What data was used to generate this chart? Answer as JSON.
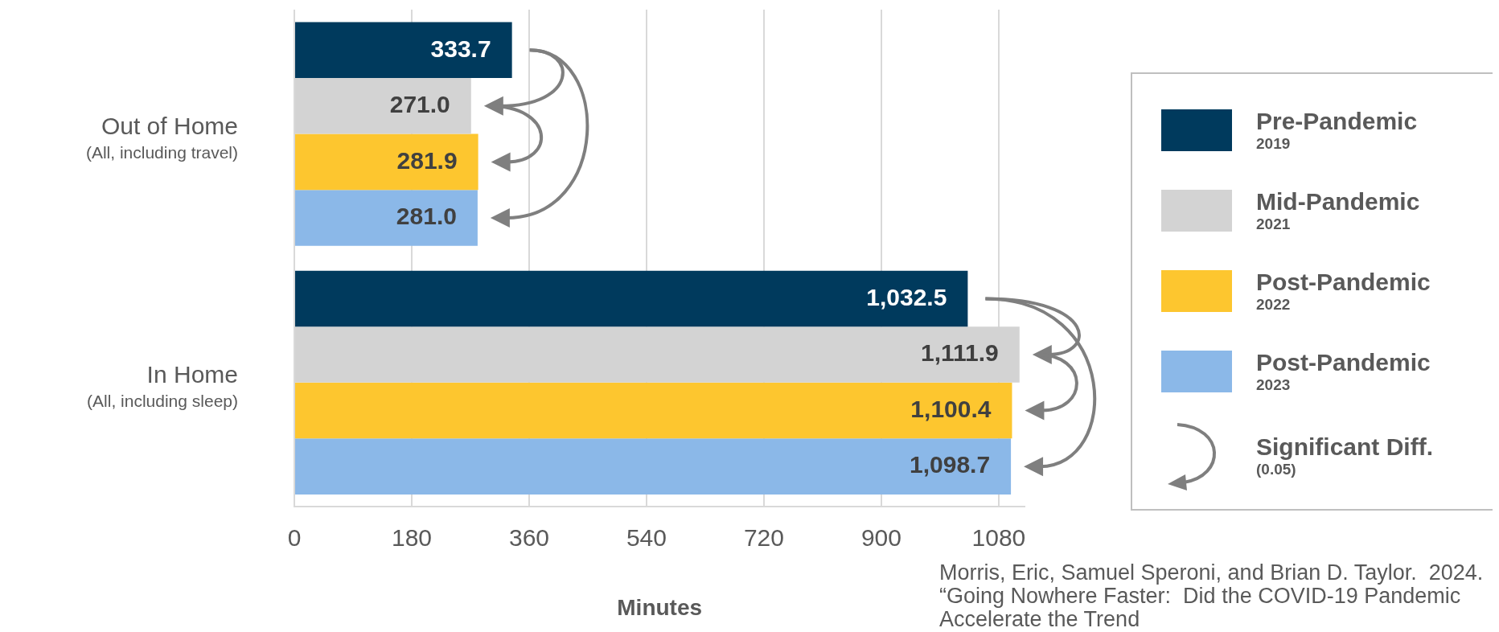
{
  "chart_data": {
    "type": "bar",
    "orientation": "horizontal",
    "xlabel": "Minutes",
    "categories": [
      "Out of Home\n(All, including travel)",
      "In Home\n(All, including sleep)"
    ],
    "series": [
      {
        "name": "Pre-Pandemic\n2019",
        "color": "#003a5d",
        "values": [
          333.7,
          1032.5
        ],
        "value_labels": [
          "333.7",
          "1,032.5"
        ]
      },
      {
        "name": "Mid-Pandemic\n2021",
        "color": "#d3d3d3",
        "values": [
          271.0,
          1111.9
        ],
        "value_labels": [
          "271.0",
          "1,111.9"
        ]
      },
      {
        "name": "Post-Pandemic\n2022",
        "color": "#fdc62f",
        "values": [
          281.9,
          1100.4
        ],
        "value_labels": [
          "281.9",
          "1,100.4"
        ]
      },
      {
        "name": "Post-Pandemic\n2023",
        "color": "#8bb8e8",
        "values": [
          281.0,
          1098.7
        ],
        "value_labels": [
          "281.0",
          "1,098.7"
        ]
      }
    ],
    "xlim": [
      0,
      1120
    ],
    "xticks": [
      0,
      180,
      360,
      540,
      720,
      900,
      1080
    ],
    "grid": "x",
    "legend": "right",
    "annotations": [
      "Significant Diff.\n(0.05)",
      "Morris, Eric, Samuel Speroni, and Brian D. Taylor.  2024.  “Going Nowhere Faster:  Did the COVID-19 Pandemic Accelerate the Trend"
    ]
  }
}
